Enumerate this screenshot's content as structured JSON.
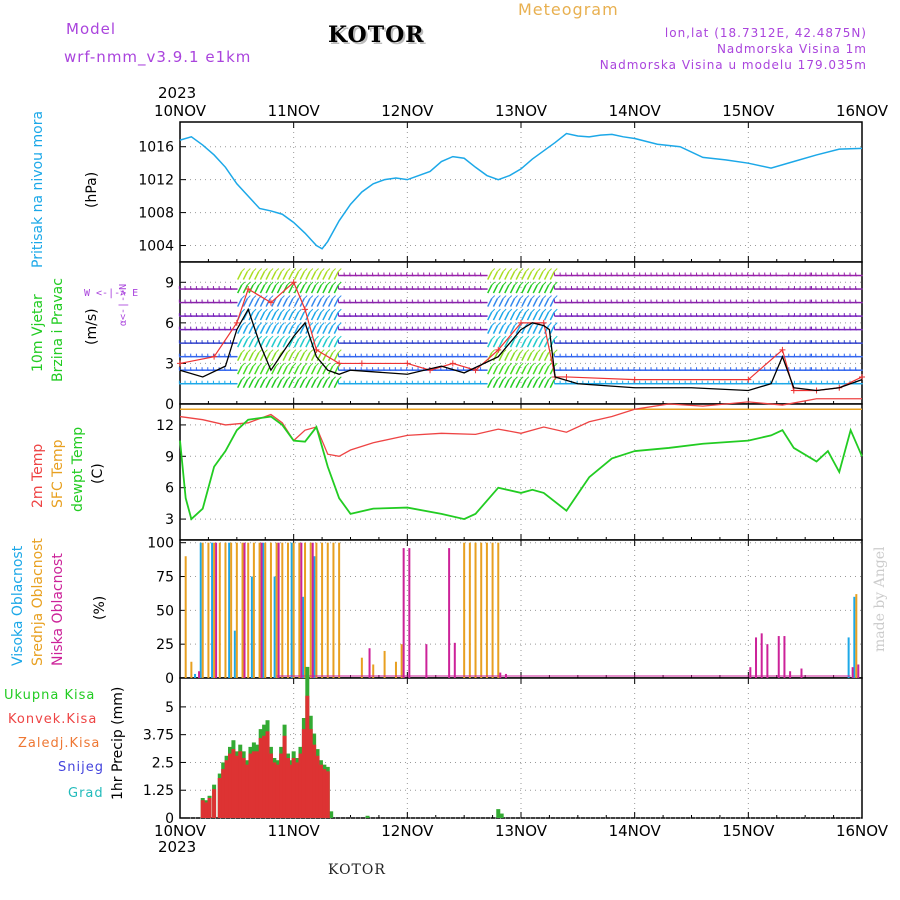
{
  "header": {
    "model_label": "Model",
    "model_name": "wrf-nmm_v3.9.1  e1km",
    "city": "KOTOR",
    "meteogram": "Meteogram",
    "lonlat": "lon,lat (18.7312E, 42.4875N)",
    "altitude": "Nadmorska Visina 1m",
    "model_altitude": "Nadmorska Visina u modelu 179.035m",
    "year": "2023",
    "footer_city": "KOTOR",
    "watermark": "made by Angel"
  },
  "colors": {
    "pressure": "#1ca8e8",
    "temp2m": "#ee4444",
    "sfc": "#e8a020",
    "dewpt": "#22cc22",
    "wind_speed": "#000000",
    "wind_dir": "#ee3333",
    "high_cloud": "#1ca8e8",
    "mid_cloud": "#e8a020",
    "low_cloud": "#cc2299",
    "total_precip": "#33aa33",
    "conv_precip": "#dd3333",
    "frozen": "#ee7733",
    "snow": "#4444dd",
    "grad": "#22bbbb",
    "header_purple": "#aa44dd",
    "header_orange": "#e8b050"
  },
  "chart_data": [
    {
      "type": "line",
      "panel": "pressure",
      "ylabel_left": "Pritisak na nivou mora",
      "ylabel": "(hPa)",
      "x_ticks": [
        "10NOV",
        "11NOV",
        "12NOV",
        "13NOV",
        "14NOV",
        "15NOV",
        "16NOV"
      ],
      "ylim": [
        1002,
        1019
      ],
      "y_ticks": [
        1004,
        1008,
        1012,
        1016
      ],
      "grid": true,
      "series": [
        {
          "x": [
            0,
            0.1,
            0.2,
            0.3,
            0.4,
            0.5,
            0.6,
            0.7,
            0.8,
            0.9,
            1.0,
            1.1,
            1.2,
            1.25,
            1.3,
            1.4,
            1.5,
            1.6,
            1.7,
            1.8,
            1.9,
            2.0,
            2.1,
            2.2,
            2.3,
            2.4,
            2.5,
            2.6,
            2.7,
            2.8,
            2.9,
            3.0,
            3.1,
            3.2,
            3.3,
            3.4,
            3.5,
            3.6,
            3.7,
            3.8,
            3.9,
            4.0,
            4.2,
            4.4,
            4.6,
            4.8,
            5.0,
            5.2,
            5.4,
            5.6,
            5.8,
            6.0
          ],
          "values": [
            1016.8,
            1017.2,
            1016.2,
            1015.0,
            1013.5,
            1011.5,
            1010.0,
            1008.5,
            1008.2,
            1007.8,
            1006.8,
            1005.5,
            1004.0,
            1003.6,
            1004.5,
            1007.0,
            1009.0,
            1010.5,
            1011.5,
            1012.0,
            1012.2,
            1012.0,
            1012.5,
            1013.0,
            1014.2,
            1014.8,
            1014.6,
            1013.5,
            1012.5,
            1012.0,
            1012.5,
            1013.3,
            1014.5,
            1015.5,
            1016.5,
            1017.6,
            1017.3,
            1017.2,
            1017.4,
            1017.5,
            1017.2,
            1017.0,
            1016.3,
            1016.0,
            1014.7,
            1014.4,
            1014.0,
            1013.4,
            1014.2,
            1015.0,
            1015.7,
            1015.8
          ]
        }
      ]
    },
    {
      "type": "line",
      "panel": "wind",
      "ylabel_left": "10m Vjetar",
      "ylabel_left2": "Brzina i Pravac",
      "ylabel": "(m/s)",
      "compass": [
        "N",
        "E",
        "S",
        "W"
      ],
      "ylim": [
        0,
        10.5
      ],
      "y_ticks": [
        0,
        3,
        6,
        9
      ],
      "grid": true,
      "series": [
        {
          "name": "speed",
          "x": [
            0,
            0.2,
            0.4,
            0.5,
            0.6,
            0.7,
            0.8,
            1.0,
            1.1,
            1.2,
            1.3,
            1.4,
            1.5,
            2.0,
            2.3,
            2.5,
            2.8,
            3.0,
            3.1,
            3.2,
            3.25,
            3.3,
            3.5,
            4.0,
            4.5,
            5.0,
            5.2,
            5.3,
            5.4,
            5.6,
            5.8,
            6.0
          ],
          "values": [
            2.5,
            2.0,
            2.8,
            5.5,
            7.0,
            4.5,
            2.5,
            5.0,
            6.0,
            3.5,
            2.5,
            2.2,
            2.5,
            2.2,
            2.8,
            2.3,
            3.5,
            5.5,
            6.0,
            5.8,
            5.5,
            2.0,
            1.5,
            1.2,
            1.2,
            1.0,
            1.5,
            3.5,
            1.2,
            1.0,
            1.2,
            1.8
          ]
        },
        {
          "name": "direction",
          "x": [
            0,
            0.3,
            0.5,
            0.6,
            0.8,
            1.0,
            1.1,
            1.2,
            1.4,
            1.6,
            2.0,
            2.2,
            2.4,
            2.6,
            2.8,
            3.0,
            3.2,
            3.3,
            3.4,
            4.0,
            5.0,
            5.3,
            5.4,
            5.6,
            5.8,
            6.0
          ],
          "values": [
            3.0,
            3.5,
            6.0,
            8.5,
            7.5,
            9.0,
            7.0,
            4.0,
            3.0,
            3.0,
            3.0,
            2.5,
            3.0,
            2.5,
            4.0,
            6.0,
            6.0,
            2.0,
            2.0,
            1.8,
            1.8,
            4.0,
            1.0,
            1.0,
            1.2,
            2.0
          ]
        }
      ],
      "wind_barbs": [
        {
          "from": 0.0,
          "to": 0.5,
          "dir": "west",
          "levels": [
            1,
            2,
            3,
            4,
            5,
            6,
            7,
            8
          ]
        },
        {
          "from": 0.5,
          "to": 1.4,
          "dir": "north-east",
          "levels": [
            1,
            2,
            3,
            4,
            5,
            6,
            7,
            8,
            9
          ]
        },
        {
          "from": 1.4,
          "to": 2.7,
          "dir": "west",
          "levels": [
            1,
            2,
            3,
            4,
            5,
            6,
            7,
            8,
            9
          ]
        },
        {
          "from": 2.7,
          "to": 3.3,
          "dir": "north-east",
          "levels": [
            1,
            2,
            3,
            4,
            5,
            6,
            7,
            8,
            9
          ]
        },
        {
          "from": 3.3,
          "to": 5.3,
          "dir": "west",
          "levels": [
            1,
            2,
            3,
            4,
            5,
            6,
            7,
            8,
            9
          ]
        },
        {
          "from": 5.3,
          "to": 5.55,
          "dir": "east",
          "levels": [
            1,
            2,
            3,
            4,
            5,
            6,
            7,
            8,
            9
          ]
        },
        {
          "from": 5.55,
          "to": 6.0,
          "dir": "west",
          "levels": [
            1,
            2,
            3,
            4,
            5,
            6,
            7,
            8,
            9
          ]
        }
      ]
    },
    {
      "type": "line",
      "panel": "temperature",
      "ylabel_left": "2m Temp",
      "ylabel_left2": "SFC Temp",
      "ylabel_left3": "dewpt Temp",
      "ylabel": "(C)",
      "ylim": [
        1,
        14
      ],
      "y_ticks": [
        3,
        6,
        9,
        12
      ],
      "grid": true,
      "series": [
        {
          "name": "2m Temp",
          "x": [
            0,
            0.2,
            0.4,
            0.6,
            0.8,
            0.9,
            1.0,
            1.1,
            1.2,
            1.3,
            1.4,
            1.5,
            1.7,
            2.0,
            2.3,
            2.6,
            2.8,
            3.0,
            3.2,
            3.4,
            3.6,
            3.8,
            4.0,
            4.3,
            4.6,
            5.0,
            5.3,
            5.6,
            6.0
          ],
          "values": [
            12.8,
            12.5,
            12.0,
            12.2,
            13.0,
            12.2,
            10.5,
            11.5,
            11.8,
            9.2,
            9.0,
            9.6,
            10.3,
            11.0,
            11.2,
            11.1,
            11.6,
            11.2,
            11.8,
            11.3,
            12.3,
            12.8,
            13.5,
            14.0,
            13.8,
            14.2,
            13.9,
            14.5,
            14.5
          ]
        },
        {
          "name": "SFC Temp",
          "x": [
            0,
            6.0
          ],
          "values": [
            13.5,
            13.5
          ]
        },
        {
          "name": "dewpt Temp",
          "x": [
            0,
            0.05,
            0.1,
            0.2,
            0.3,
            0.4,
            0.5,
            0.6,
            0.8,
            0.9,
            1.0,
            1.1,
            1.2,
            1.3,
            1.4,
            1.5,
            1.7,
            2.0,
            2.3,
            2.5,
            2.6,
            2.8,
            3.0,
            3.1,
            3.2,
            3.4,
            3.6,
            3.8,
            4.0,
            4.3,
            4.6,
            5.0,
            5.2,
            5.3,
            5.4,
            5.6,
            5.7,
            5.8,
            5.9,
            6.0
          ],
          "values": [
            10.5,
            5.0,
            3.0,
            4.0,
            8.0,
            9.5,
            11.5,
            12.5,
            12.8,
            12.0,
            10.5,
            10.4,
            11.8,
            8.0,
            5.0,
            3.5,
            4.0,
            4.1,
            3.5,
            3.0,
            3.5,
            6.0,
            5.5,
            5.8,
            5.5,
            3.8,
            7.0,
            8.8,
            9.5,
            9.8,
            10.2,
            10.5,
            11.0,
            11.5,
            9.8,
            8.5,
            9.5,
            7.5,
            11.5,
            9.0
          ]
        }
      ]
    },
    {
      "type": "bar",
      "panel": "clouds",
      "ylabel_left": "Visoka Oblacnost",
      "ylabel_left2": "Srednja Oblacnost",
      "ylabel_left3": "Niska Oblacnost",
      "ylabel": "(%)",
      "ylim": [
        0,
        102
      ],
      "y_ticks": [
        0,
        25,
        50,
        75,
        100
      ],
      "grid": true,
      "series": [
        {
          "name": "Visoka Oblacnost",
          "x": [
            0.15,
            0.2,
            0.3,
            0.45,
            0.5,
            0.65,
            0.75,
            0.85,
            1.0,
            1.1,
            1.2,
            5.9,
            5.95
          ],
          "values": [
            3,
            100,
            100,
            100,
            35,
            75,
            100,
            75,
            100,
            60,
            90,
            30,
            60
          ]
        },
        {
          "name": "Srednja Oblacnost",
          "x": [
            0.05,
            0.1,
            0.2,
            0.25,
            0.3,
            0.35,
            0.4,
            0.45,
            0.5,
            0.55,
            0.6,
            0.65,
            0.7,
            0.75,
            0.8,
            0.85,
            0.9,
            0.95,
            1.0,
            1.05,
            1.1,
            1.15,
            1.2,
            1.25,
            1.3,
            1.35,
            1.4,
            1.6,
            1.7,
            1.8,
            1.9,
            1.95,
            2.5,
            2.55,
            2.6,
            2.65,
            2.7,
            2.75,
            2.8,
            5.95
          ],
          "values": [
            90,
            12,
            100,
            100,
            100,
            100,
            100,
            100,
            100,
            100,
            100,
            100,
            100,
            100,
            100,
            100,
            100,
            100,
            100,
            100,
            100,
            100,
            100,
            100,
            100,
            100,
            100,
            15,
            10,
            20,
            12,
            25,
            100,
            100,
            100,
            100,
            100,
            100,
            100,
            62
          ]
        },
        {
          "name": "Niska Oblacnost",
          "x": [
            0.15,
            0.3,
            0.55,
            0.7,
            0.85,
            1.05,
            1.15,
            1.65,
            1.95,
            2.0,
            2.15,
            2.35,
            2.4,
            2.8,
            2.85,
            5.0,
            5.05,
            5.1,
            5.15,
            5.25,
            5.3,
            5.35,
            5.45,
            5.9,
            5.95
          ],
          "values": [
            5,
            100,
            100,
            100,
            100,
            100,
            100,
            22,
            96,
            96,
            25,
            96,
            26,
            4,
            3,
            8,
            30,
            33,
            25,
            31,
            31,
            5,
            7,
            8,
            10
          ]
        }
      ]
    },
    {
      "type": "bar",
      "panel": "precip",
      "ylabel_left": [
        "Ukupna Kisa",
        "Konvek.Kisa",
        "Zaledj.Kisa",
        "Snijeg",
        "Grad"
      ],
      "ylabel": "1hr Precip (mm)",
      "ylim": [
        0,
        6.3
      ],
      "y_ticks": [
        "0",
        "1.25",
        "2.5",
        "3.75",
        "5"
      ],
      "y_tick_values": [
        0,
        1.25,
        2.5,
        3.75,
        5
      ],
      "grid": true,
      "series": [
        {
          "name": "Ukupna Kisa",
          "x": [
            0.2,
            0.23,
            0.26,
            0.3,
            0.35,
            0.38,
            0.41,
            0.44,
            0.47,
            0.5,
            0.53,
            0.56,
            0.59,
            0.62,
            0.65,
            0.68,
            0.71,
            0.74,
            0.77,
            0.8,
            0.83,
            0.86,
            0.89,
            0.92,
            0.95,
            0.98,
            1.0,
            1.03,
            1.06,
            1.09,
            1.12,
            1.15,
            1.18,
            1.21,
            1.24,
            1.27,
            1.3,
            1.33,
            1.65,
            2.8,
            2.83
          ],
          "values": [
            0.9,
            0.8,
            1.0,
            1.5,
            2.0,
            2.5,
            2.8,
            3.2,
            3.5,
            3.0,
            3.3,
            3.0,
            2.6,
            3.2,
            3.4,
            3.3,
            4.0,
            4.2,
            4.4,
            3.2,
            2.7,
            2.6,
            3.2,
            4.2,
            2.9,
            2.6,
            3.0,
            2.7,
            3.2,
            4.5,
            6.8,
            4.6,
            3.8,
            3.1,
            2.6,
            2.4,
            2.3,
            0.3,
            0.1,
            0.4,
            0.2
          ]
        },
        {
          "name": "Konvek.Kisa",
          "x": [
            0.2,
            0.23,
            0.26,
            0.3,
            0.35,
            0.38,
            0.41,
            0.44,
            0.47,
            0.5,
            0.53,
            0.56,
            0.59,
            0.62,
            0.65,
            0.68,
            0.71,
            0.74,
            0.77,
            0.8,
            0.83,
            0.86,
            0.89,
            0.92,
            0.95,
            0.98,
            1.0,
            1.03,
            1.06,
            1.09,
            1.12,
            1.15,
            1.18,
            1.21,
            1.24,
            1.27,
            1.3
          ],
          "values": [
            0.8,
            0.7,
            0.9,
            1.3,
            1.8,
            2.2,
            2.6,
            2.9,
            3.1,
            2.8,
            3.0,
            2.7,
            2.4,
            2.9,
            3.0,
            3.0,
            3.6,
            3.7,
            3.9,
            2.9,
            2.5,
            2.4,
            2.9,
            3.7,
            2.7,
            2.4,
            2.7,
            2.5,
            2.9,
            4.0,
            5.5,
            4.0,
            3.3,
            2.8,
            2.4,
            2.2,
            2.1
          ]
        }
      ]
    }
  ]
}
